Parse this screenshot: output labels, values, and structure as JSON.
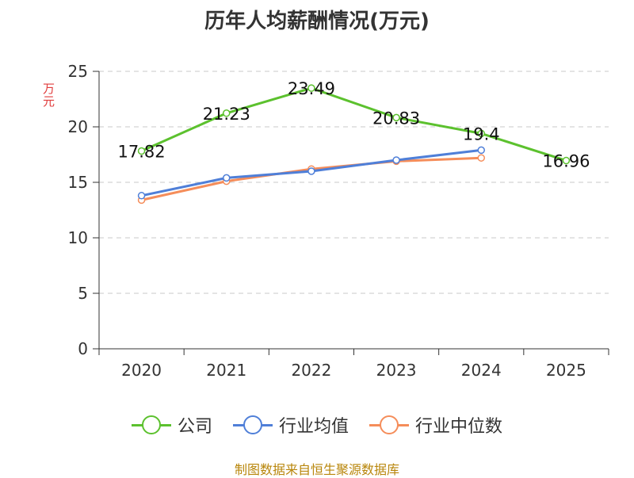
{
  "chart_data": {
    "type": "line",
    "title": "历年人均薪酬情况(万元)",
    "ylabel": "万元",
    "xlabel": "",
    "ylim": [
      0,
      25
    ],
    "yticks": [
      0,
      5,
      10,
      15,
      20,
      25
    ],
    "grid": true,
    "legend_position": "bottom",
    "categories": [
      "2020",
      "2021",
      "2022",
      "2023",
      "2024",
      "2025"
    ],
    "series": [
      {
        "name": "公司",
        "color": "#5cc12e",
        "values": [
          17.82,
          21.23,
          23.49,
          20.83,
          19.4,
          16.96
        ],
        "labels": [
          "17.82",
          "21.23",
          "23.49",
          "20.83",
          "19.4",
          "16.96"
        ]
      },
      {
        "name": "行业均值",
        "color": "#4f7fd8",
        "values": [
          13.8,
          15.4,
          16.0,
          17.0,
          17.9,
          null
        ]
      },
      {
        "name": "行业中位数",
        "color": "#f58d5a",
        "values": [
          13.4,
          15.1,
          16.2,
          16.9,
          17.2,
          null
        ]
      }
    ]
  },
  "source": "制图数据来自恒生聚源数据库"
}
